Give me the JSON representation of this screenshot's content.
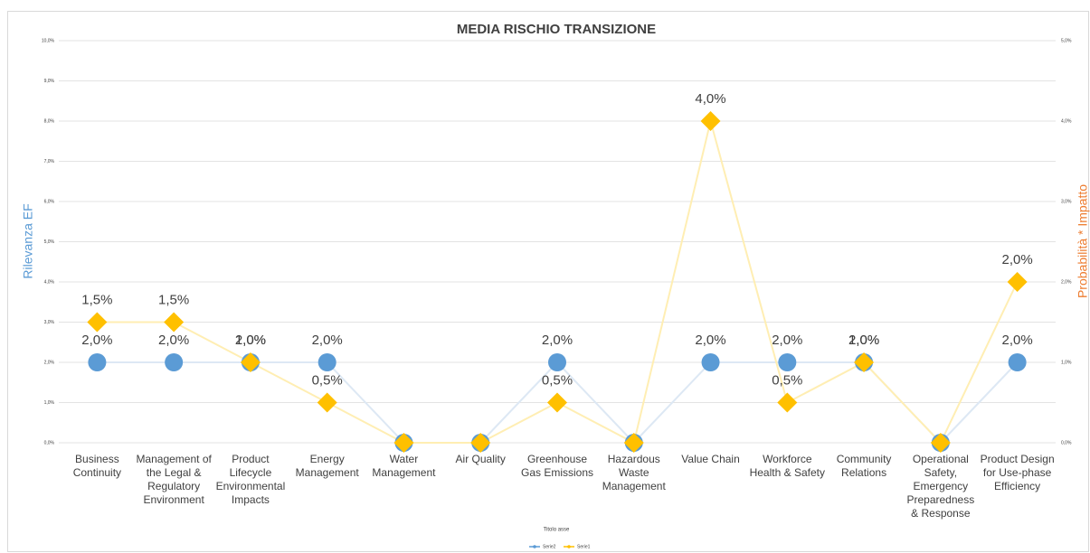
{
  "chart_data": {
    "type": "line",
    "title": "MEDIA RISCHIO TRANSIZIONE",
    "categories": [
      "Business Continuity",
      "Management of the Legal & Regulatory Environment",
      "Product Lifecycle Environmental Impacts",
      "Energy Management",
      "Water Management",
      "Air Quality",
      "Greenhouse Gas Emissions",
      "Hazardous Waste Management",
      "Value Chain",
      "Workforce Health & Safety",
      "Community Relations",
      "Operational Safety, Emergency Preparedness & Response",
      "Product Design for Use-phase Efficiency"
    ],
    "series": [
      {
        "name": "Serie2",
        "color": "#5b9bd5",
        "marker": "circle",
        "axis": "y",
        "values": [
          2,
          2,
          2,
          2,
          0,
          0,
          2,
          0,
          2,
          2,
          2,
          0,
          2
        ],
        "value_labels": [
          "2,0%",
          "2,0%",
          "2,0%",
          "2,0%",
          null,
          null,
          "2,0%",
          null,
          "2,0%",
          "2,0%",
          "2,0%",
          null,
          "2,0%"
        ]
      },
      {
        "name": "Serie1",
        "color": "#ffc000",
        "marker": "diamond",
        "axis": "y2",
        "values": [
          1.5,
          1.5,
          1,
          0.5,
          0,
          0,
          0.5,
          0,
          4,
          0.5,
          1,
          0,
          2
        ],
        "value_labels": [
          "1,5%",
          "1,5%",
          "1,0%",
          "0,5%",
          null,
          null,
          "0,5%",
          null,
          "4,0%",
          "0,5%",
          "1,0%",
          null,
          "2,0%"
        ]
      }
    ],
    "xlabel": "Titolo asse",
    "ylabel": "Rilevanza EF",
    "y2label": "Probabilità * Impatto",
    "ylim": [
      0,
      10
    ],
    "yticks": [
      {
        "value": 0,
        "label": "0,0%"
      },
      {
        "value": 1,
        "label": "1,0%"
      },
      {
        "value": 2,
        "label": "2,0%"
      },
      {
        "value": 3,
        "label": "3,0%"
      },
      {
        "value": 4,
        "label": "4,0%"
      },
      {
        "value": 5,
        "label": "5,0%"
      },
      {
        "value": 6,
        "label": "6,0%"
      },
      {
        "value": 7,
        "label": "7,0%"
      },
      {
        "value": 8,
        "label": "8,0%"
      },
      {
        "value": 9,
        "label": "9,0%"
      },
      {
        "value": 10,
        "label": "10,0%"
      }
    ],
    "y2lim": [
      0,
      5
    ],
    "y2ticks": [
      {
        "value": 0,
        "label": "0,0%"
      },
      {
        "value": 1,
        "label": "1,0%"
      },
      {
        "value": 2,
        "label": "2,0%"
      },
      {
        "value": 3,
        "label": "3,0%"
      },
      {
        "value": 4,
        "label": "4,0%"
      },
      {
        "value": 5,
        "label": "5,0%"
      }
    ],
    "grid": true,
    "legend": "bottom"
  }
}
